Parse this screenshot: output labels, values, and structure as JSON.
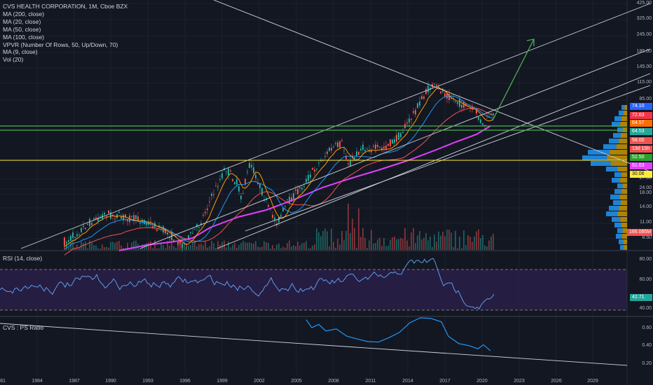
{
  "legend": {
    "title": "CVS HEALTH CORPORATION, 1M, Cboe BZX",
    "indicators": [
      "MA (200, close)",
      "MA (20, close)",
      "MA (50, close)",
      "MA (100, close)",
      "VPVR (Number Of Rows, 50, Up/Down, 70)",
      "MA (9, close)",
      "Vol (20)"
    ]
  },
  "rsi_pane": {
    "title": "RSI (14, close)",
    "value_tag": "42.71",
    "levels": [
      "80.00",
      "60.00",
      "40.00"
    ]
  },
  "ps_pane": {
    "title": "CVS : PS Ratio",
    "levels": [
      "0.60",
      "0.40",
      "0.20"
    ]
  },
  "price_axis": {
    "labels": [
      "425.00",
      "325.00",
      "245.00",
      "185.00",
      "145.00",
      "115.00",
      "85.00",
      "27.00",
      "24.00",
      "18.00",
      "14.00",
      "11.00",
      "8.50"
    ],
    "tags": [
      {
        "text": "74.10",
        "color": "#2962ff"
      },
      {
        "text": "72.63",
        "color": "#f23645"
      },
      {
        "text": "64.57",
        "color": "#ff6d00"
      },
      {
        "text": "64.53",
        "color": "#26a69a"
      },
      {
        "text": "58.00",
        "color": "#ef5350"
      },
      {
        "text": "13d 15h",
        "color": "#ef5350"
      },
      {
        "text": "52.50",
        "color": "#2ca02c"
      },
      {
        "text": "51.63",
        "color": "#e040fb"
      },
      {
        "text": "30.06",
        "color": "#ffeb3b"
      },
      {
        "text": "166.085M",
        "color": "#ef5350"
      }
    ]
  },
  "time_axis": {
    "labels": [
      "81",
      "1984",
      "1987",
      "1990",
      "1993",
      "1996",
      "1999",
      "2002",
      "2005",
      "2008",
      "2011",
      "2014",
      "2017",
      "2020",
      "2023",
      "2026",
      "2029"
    ]
  },
  "colors": {
    "background": "#131722",
    "grid": "#1e222d",
    "ma200": "#e040fb",
    "ma20": "#ff9800",
    "ma50": "#2196f3",
    "ma100": "#ef5350",
    "arrow": "#4caf50",
    "support": "#4caf50",
    "level": "#ffeb3b",
    "rsi": "#5d9cec",
    "ps": "#2196f3"
  }
}
